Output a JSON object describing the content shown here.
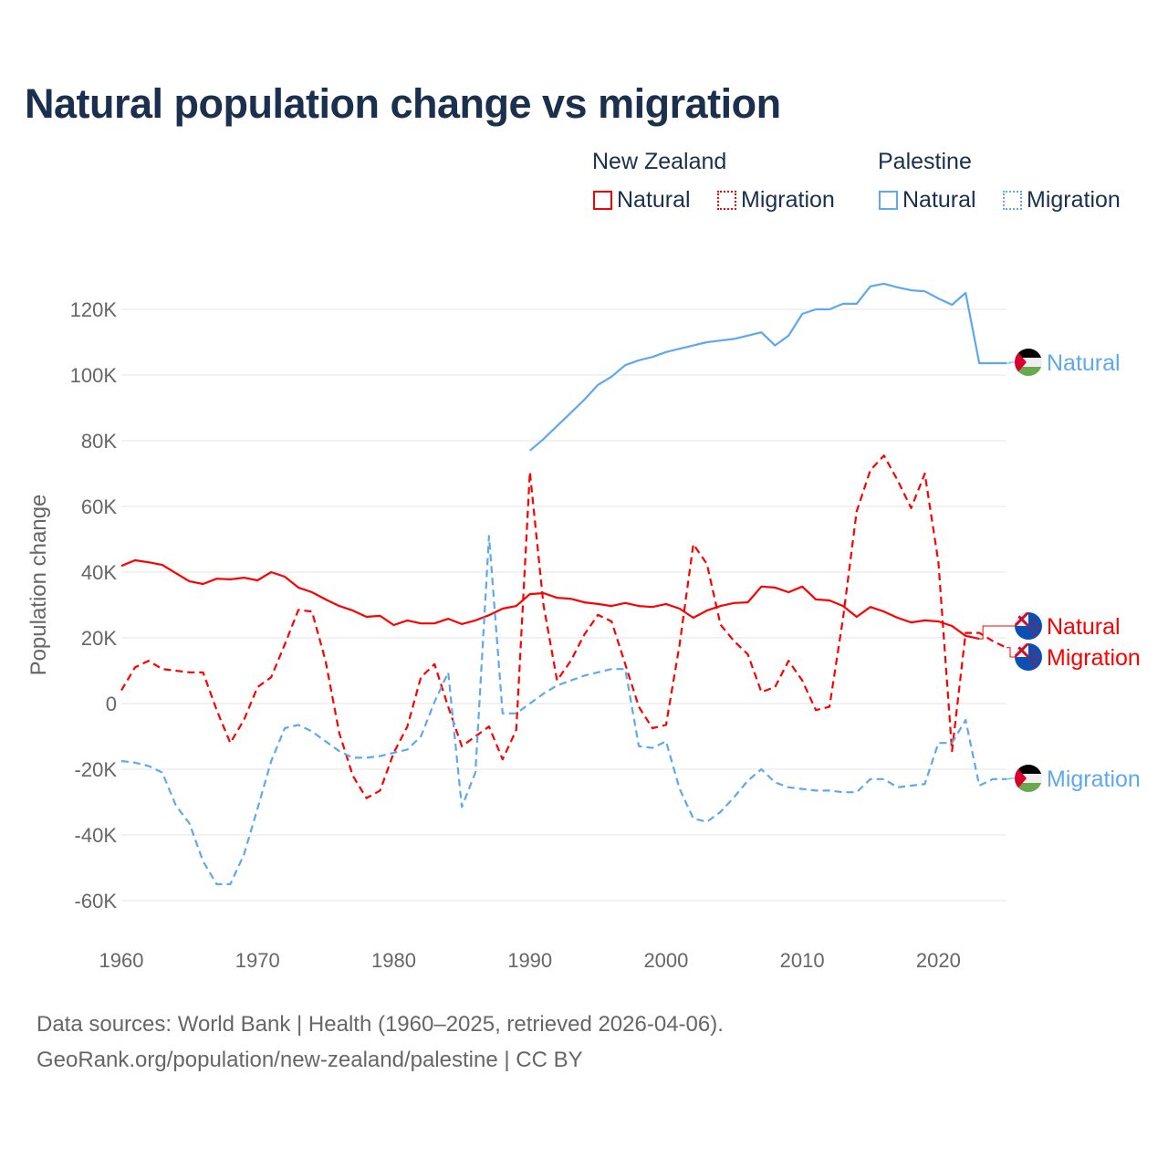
{
  "title": "Natural population change vs migration",
  "legend": {
    "groups": [
      {
        "name": "New Zealand",
        "color": "#ff0000",
        "items": [
          "Natural",
          "Migration"
        ]
      },
      {
        "name": "Palestine",
        "color": "#5ea8ee",
        "items": [
          "Natural",
          "Migration"
        ]
      }
    ]
  },
  "sources": {
    "line1": "Data sources: World Bank | Health (1960–2025, retrieved 2026-04-06).",
    "line2": "GeoRank.org/population/new-zealand/palestine | CC BY"
  },
  "chart_data": {
    "type": "line",
    "title": "Natural population change vs migration",
    "xlabel": "",
    "ylabel": "Population change",
    "xlim": [
      1960,
      2025
    ],
    "ylim": [
      -70000,
      130000
    ],
    "x_ticks": [
      1960,
      1970,
      1980,
      1990,
      2000,
      2010,
      2020
    ],
    "x_tick_labels": [
      "1960",
      "1970",
      "1980",
      "1990",
      "2000",
      "2010",
      "2020"
    ],
    "y_ticks": [
      -60000,
      -40000,
      -20000,
      0,
      20000,
      40000,
      60000,
      80000,
      100000,
      120000
    ],
    "y_tick_labels": [
      "-60K",
      "-40K",
      "-20K",
      "0",
      "20K",
      "40K",
      "60K",
      "80K",
      "100K",
      "120K"
    ],
    "grid": true,
    "legend_position": "top-right",
    "series": [
      {
        "name": "New Zealand Natural",
        "end_label": "Natural",
        "color": "#ff0000",
        "dash": "solid",
        "start": 1960,
        "values": [
          41900,
          43600,
          43000,
          42200,
          39700,
          37200,
          36400,
          38000,
          37800,
          38300,
          37500,
          40000,
          38600,
          35300,
          33900,
          31700,
          29700,
          28300,
          26400,
          26700,
          23900,
          25300,
          24400,
          24400,
          25800,
          24200,
          25300,
          26900,
          28900,
          29700,
          33300,
          33600,
          32200,
          31900,
          30800,
          30300,
          29700,
          30600,
          29700,
          29400,
          30300,
          28900,
          26100,
          28300,
          29700,
          30600,
          30800,
          35600,
          35300,
          33900,
          35600,
          31700,
          31400,
          29700,
          26400,
          29400,
          28000,
          26100,
          24700,
          25300,
          25000,
          23600,
          20600,
          19700
        ]
      },
      {
        "name": "New Zealand Migration",
        "end_label": "Migration",
        "color": "#ff0000",
        "dash": "dashed",
        "start": 1960,
        "values": [
          4000,
          11000,
          13000,
          10500,
          10000,
          9500,
          9500,
          -2000,
          -12000,
          -5000,
          5000,
          8000,
          18000,
          28500,
          28000,
          13000,
          -9000,
          -22000,
          -28800,
          -26500,
          -15000,
          -7000,
          8000,
          12000,
          -1000,
          -13000,
          -10000,
          -7000,
          -17000,
          -8000,
          70500,
          30000,
          7000,
          13000,
          21000,
          27000,
          25000,
          12000,
          -1000,
          -7500,
          -6500,
          18000,
          48500,
          42500,
          24000,
          19000,
          15000,
          3500,
          5000,
          13000,
          7000,
          -2000,
          -1000,
          26000,
          58500,
          71000,
          75500,
          68000,
          59500,
          70000,
          43000,
          -14500,
          21500,
          21500,
          19000,
          17000
        ]
      },
      {
        "name": "Palestine Natural",
        "end_label": "Natural",
        "color": "#5ea8ee",
        "dash": "solid",
        "start": 1990,
        "values": [
          77000,
          80500,
          84500,
          88500,
          92500,
          97000,
          99500,
          103000,
          104500,
          105500,
          107000,
          108000,
          109000,
          110000,
          110500,
          111000,
          112000,
          113000,
          109000,
          112000,
          118600,
          120000,
          120000,
          121700,
          121700,
          127000,
          127800,
          126700,
          125800,
          125500,
          123300,
          121400,
          125000,
          103600,
          103600,
          103600
        ]
      },
      {
        "name": "Palestine Migration",
        "end_label": "Migration",
        "color": "#5ea8ee",
        "dash": "dashed",
        "start": 1960,
        "values": [
          -17500,
          -18000,
          -19000,
          -21000,
          -31000,
          -36500,
          -48000,
          -55000,
          -55000,
          -46000,
          -32000,
          -17500,
          -7500,
          -6500,
          -8500,
          -11500,
          -14500,
          -16500,
          -16500,
          -16000,
          -15000,
          -14000,
          -10000,
          500,
          9500,
          -31500,
          -21000,
          51000,
          -3000,
          -3000,
          0,
          3000,
          5500,
          7000,
          8500,
          9500,
          10500,
          10500,
          -13000,
          -13500,
          -11500,
          -26000,
          -35000,
          -36000,
          -33000,
          -28500,
          -23500,
          -20000,
          -24000,
          -25500,
          -26000,
          -26500,
          -26500,
          -27000,
          -27000,
          -23000,
          -23000,
          -25500,
          -25000,
          -24500,
          -12000,
          -12000,
          -5000,
          -25000,
          -23000,
          -23000
        ]
      }
    ]
  }
}
